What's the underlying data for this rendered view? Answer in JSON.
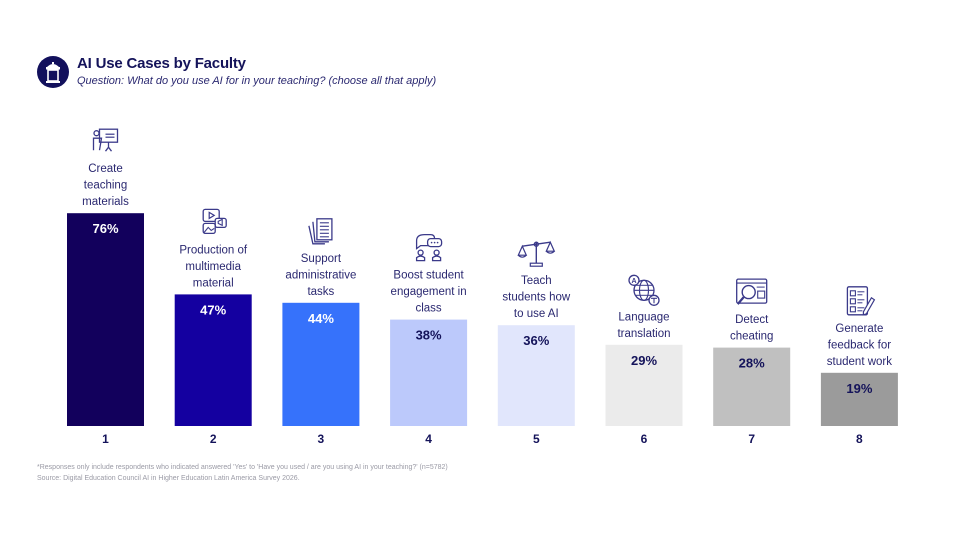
{
  "header": {
    "title": "AI Use Cases by Faculty",
    "subtitle": "Question:  What do you use AI for in your teaching? (choose all that apply)",
    "logo_icon": "podium-icon"
  },
  "footer": {
    "note": "*Responses only include respondents who indicated answered 'Yes' to 'Have you used / are you using AI in your teaching?' (n=5782)",
    "source": "Source: Digital Education Council AI in Higher Education Latin America Survey 2026."
  },
  "chart_data": {
    "type": "bar",
    "title": "AI Use Cases by Faculty",
    "subtitle": "Question:  What do you use AI for in your teaching? (choose all that apply)",
    "xlabel": "",
    "ylabel": "",
    "ylim": [
      0,
      100
    ],
    "grid": false,
    "legend": "none",
    "categories": [
      "1",
      "2",
      "3",
      "4",
      "5",
      "6",
      "7",
      "8"
    ],
    "labels": [
      [
        "Create",
        "teaching",
        "materials"
      ],
      [
        "Production of",
        "multimedia",
        "material"
      ],
      [
        "Support",
        "administrative",
        "tasks"
      ],
      [
        "Boost student",
        "engagement in",
        "class"
      ],
      [
        "Teach",
        "students how",
        "to use AI"
      ],
      [
        "Language",
        "translation"
      ],
      [
        "Detect",
        "cheating"
      ],
      [
        "Generate",
        "feedback for",
        "student work"
      ]
    ],
    "icons": [
      "presentation-icon",
      "multimedia-icon",
      "documents-icon",
      "chat-people-icon",
      "scales-icon",
      "globe-translate-icon",
      "magnifier-screen-icon",
      "checklist-pen-icon"
    ],
    "values": [
      76,
      47,
      44,
      38,
      36,
      29,
      28,
      19
    ],
    "value_labels": [
      "76%",
      "47%",
      "44%",
      "38%",
      "36%",
      "29%",
      "28%",
      "19%"
    ],
    "colors": [
      "#12005c",
      "#1400a0",
      "#3672fb",
      "#bcc9fb",
      "#e1e6fc",
      "#ebebeb",
      "#c0c0c0",
      "#9b9b9b"
    ],
    "value_text_colors": [
      "#ffffff",
      "#ffffff",
      "#ffffff",
      "#14135a",
      "#14135a",
      "#14135a",
      "#14135a",
      "#14135a"
    ]
  }
}
